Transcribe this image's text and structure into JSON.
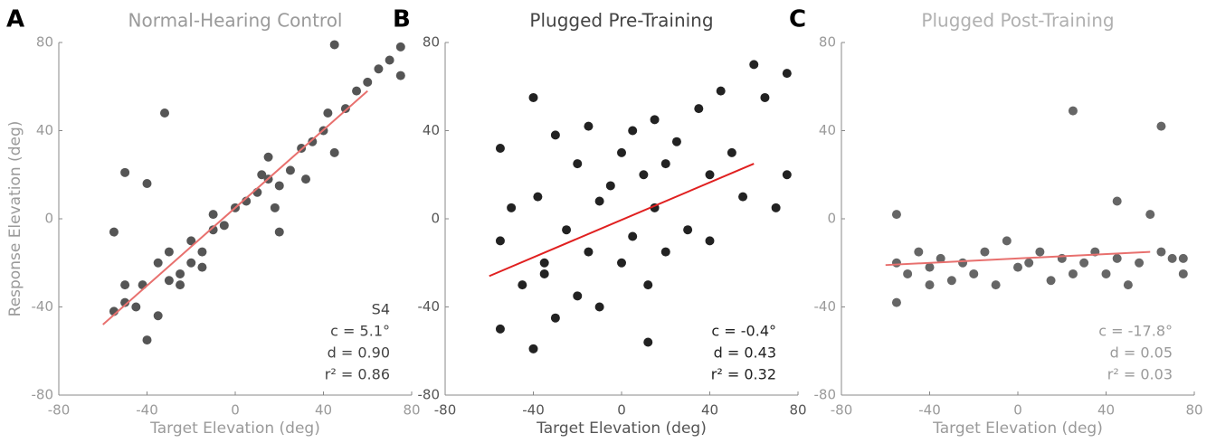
{
  "chart_data": [
    {
      "type": "scatter",
      "panel_label": "A",
      "title": "Normal-Hearing Control",
      "title_color": "#9a9a9a",
      "xlabel": "Target Elevation (deg)",
      "ylabel": "Response Elevation (deg)",
      "tick_color": "#9a9a9a",
      "color": "#555555",
      "xlim": [
        -80,
        80
      ],
      "ylim": [
        -80,
        80
      ],
      "xticks": [
        -80,
        -40,
        0,
        40,
        80
      ],
      "yticks": [
        -80,
        -40,
        0,
        40,
        80
      ],
      "x": [
        -55,
        -55,
        -50,
        -50,
        -45,
        -42,
        -40,
        -35,
        -35,
        -30,
        -30,
        -25,
        -25,
        -20,
        -20,
        -15,
        -15,
        -10,
        -10,
        -5,
        0,
        5,
        10,
        12,
        15,
        15,
        18,
        20,
        25,
        30,
        32,
        35,
        40,
        42,
        45,
        45,
        50,
        55,
        60,
        65,
        70,
        75,
        75,
        -32,
        -40,
        -50,
        20
      ],
      "y": [
        -42,
        -6,
        -38,
        -30,
        -40,
        -30,
        -55,
        -20,
        -44,
        -28,
        -15,
        -25,
        -30,
        -20,
        -10,
        -15,
        -22,
        -5,
        2,
        -3,
        5,
        8,
        12,
        20,
        18,
        28,
        5,
        15,
        22,
        32,
        18,
        35,
        40,
        48,
        30,
        79,
        50,
        58,
        62,
        68,
        72,
        78,
        65,
        48,
        16,
        21,
        -6
      ],
      "fit": {
        "color": "#e8706e",
        "x": [
          -60,
          60
        ],
        "y": [
          -48,
          58
        ]
      },
      "annotations": [
        "S4",
        "c =  5.1°",
        "d = 0.90",
        "r² = 0.86"
      ],
      "annotation_color": "#444444"
    },
    {
      "type": "scatter",
      "panel_label": "B",
      "title": "Plugged Pre-Training",
      "title_color": "#444444",
      "xlabel": "Target Elevation (deg)",
      "tick_color": "#555555",
      "color": "#222222",
      "xlim": [
        -80,
        80
      ],
      "ylim": [
        -80,
        80
      ],
      "xticks": [
        -80,
        -40,
        0,
        40,
        80
      ],
      "yticks": [
        -80,
        -40,
        0,
        40,
        80
      ],
      "x": [
        -55,
        -55,
        -55,
        -50,
        -45,
        -40,
        -40,
        -38,
        -35,
        -30,
        -30,
        -25,
        -20,
        -20,
        -15,
        -15,
        -10,
        -10,
        -5,
        0,
        0,
        5,
        5,
        10,
        12,
        15,
        15,
        20,
        20,
        25,
        30,
        35,
        40,
        40,
        45,
        50,
        55,
        60,
        65,
        70,
        75,
        75,
        -35,
        12
      ],
      "y": [
        32,
        -10,
        -50,
        5,
        -30,
        55,
        -59,
        10,
        -20,
        38,
        -45,
        -5,
        25,
        -35,
        42,
        -15,
        8,
        -40,
        15,
        -20,
        30,
        -8,
        40,
        20,
        -30,
        45,
        5,
        -15,
        25,
        35,
        -5,
        50,
        20,
        -10,
        58,
        30,
        10,
        70,
        55,
        5,
        66,
        20,
        -25,
        -56
      ],
      "fit": {
        "color": "#e02020",
        "x": [
          -60,
          60
        ],
        "y": [
          -26,
          25
        ]
      },
      "annotations": [
        "c =  -0.4°",
        "d = 0.43",
        "r² = 0.32"
      ],
      "annotation_color": "#222222"
    },
    {
      "type": "scatter",
      "panel_label": "C",
      "title": "Plugged Post-Training",
      "title_color": "#b0b0b0",
      "xlabel": "Target Elevation (deg)",
      "tick_color": "#9a9a9a",
      "color": "#666666",
      "xlim": [
        -80,
        80
      ],
      "ylim": [
        -80,
        80
      ],
      "xticks": [
        -80,
        -40,
        0,
        40,
        80
      ],
      "yticks": [
        -80,
        -40,
        0,
        40,
        80
      ],
      "x": [
        -55,
        -55,
        -55,
        -50,
        -45,
        -40,
        -40,
        -35,
        -30,
        -25,
        -20,
        -15,
        -10,
        -5,
        0,
        5,
        10,
        15,
        20,
        25,
        25,
        30,
        35,
        40,
        45,
        45,
        50,
        55,
        60,
        65,
        65,
        70,
        75,
        75
      ],
      "y": [
        2,
        -20,
        -38,
        -25,
        -15,
        -30,
        -22,
        -18,
        -28,
        -20,
        -25,
        -15,
        -30,
        -10,
        -22,
        -20,
        -15,
        -28,
        -18,
        49,
        -25,
        -20,
        -15,
        -25,
        8,
        -18,
        -30,
        -20,
        2,
        42,
        -15,
        -18,
        -25,
        -18
      ],
      "fit": {
        "color": "#e8706e",
        "x": [
          -60,
          60
        ],
        "y": [
          -21,
          -15
        ]
      },
      "annotations": [
        "c = -17.8°",
        "d =  0.05",
        "r² = 0.03"
      ],
      "annotation_color": "#9a9a9a"
    }
  ]
}
